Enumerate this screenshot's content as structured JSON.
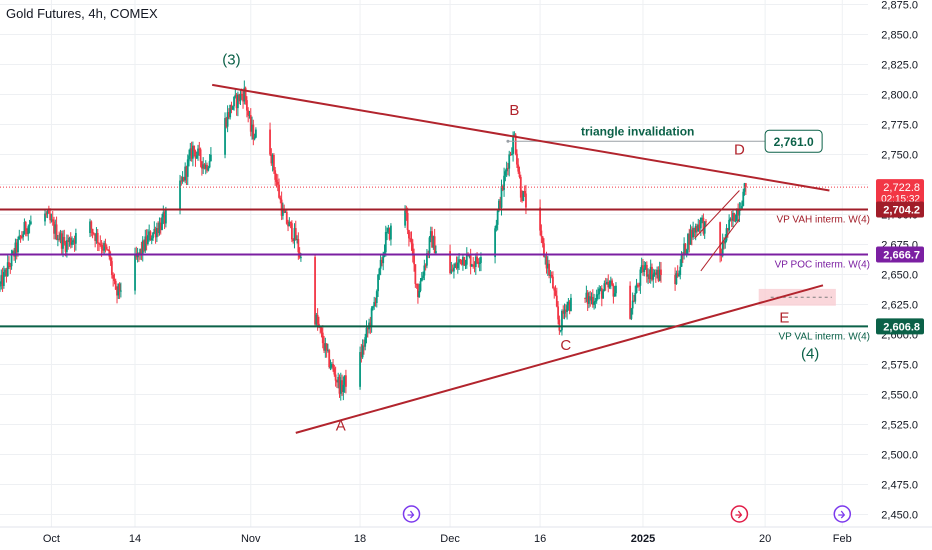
{
  "header": {
    "title": "Gold Futures, 4h, COMEX"
  },
  "colors": {
    "up": "#089981",
    "down": "#f23645",
    "trend": "#b2242d",
    "vah": "#a11d29",
    "poc": "#7b1fa2",
    "val": "#0b6148",
    "wave_green": "#0b6148",
    "wave_red": "#b2242d",
    "last": "#f23645",
    "axis_text": "#131722",
    "grid": "#eef0f3",
    "zone": "#f8c9cf"
  },
  "chart_data": {
    "type": "candlestick",
    "title": "Gold Futures, 4h, COMEX",
    "y_axis": {
      "min": 2430,
      "max": 2880,
      "ticks": [
        2450,
        2475,
        2500,
        2525,
        2550,
        2575,
        2600,
        2625,
        2650,
        2675,
        2700,
        2725,
        2750,
        2775,
        2800,
        2825,
        2850,
        2875
      ],
      "tick_labels": [
        "2,450.0",
        "2,475.0",
        "2,500.0",
        "2,525.0",
        "2,550.0",
        "2,575.0",
        "2,600.0",
        "2,625.0",
        "2,650.0",
        "2,675.0",
        "2,700.0",
        "2,725.0",
        "2,750.0",
        "2,775.0",
        "2,800.0",
        "2,825.0",
        "2,850.0",
        "2,875.0"
      ]
    },
    "x_axis": {
      "start": "2024-09-23",
      "end": "2025-02-05",
      "ticks": [
        {
          "date": "2024-10-01",
          "label": "Oct",
          "bold": false
        },
        {
          "date": "2024-10-14",
          "label": "14",
          "bold": false
        },
        {
          "date": "2024-11-01",
          "label": "Nov",
          "bold": false
        },
        {
          "date": "2024-11-18",
          "label": "18",
          "bold": false
        },
        {
          "date": "2024-12-02",
          "label": "Dec",
          "bold": false
        },
        {
          "date": "2024-12-16",
          "label": "16",
          "bold": false
        },
        {
          "date": "2025-01-01",
          "label": "2025",
          "bold": true
        },
        {
          "date": "2025-01-20",
          "label": "20",
          "bold": false
        },
        {
          "date": "2025-02-01",
          "label": "Feb",
          "bold": false
        }
      ]
    },
    "price_path": [
      [
        "2024-09-23",
        2640
      ],
      [
        "2024-09-27",
        2690
      ],
      [
        "2024-09-30",
        2700
      ],
      [
        "2024-10-03",
        2675
      ],
      [
        "2024-10-07",
        2690
      ],
      [
        "2024-10-10",
        2665
      ],
      [
        "2024-10-11",
        2632
      ],
      [
        "2024-10-14",
        2660
      ],
      [
        "2024-10-16",
        2680
      ],
      [
        "2024-10-20",
        2705
      ],
      [
        "2024-10-23",
        2755
      ],
      [
        "2024-10-25",
        2740
      ],
      [
        "2024-10-29",
        2790
      ],
      [
        "2024-10-31",
        2802
      ],
      [
        "2024-11-01",
        2770
      ],
      [
        "2024-11-04",
        2755
      ],
      [
        "2024-11-06",
        2700
      ],
      [
        "2024-11-08",
        2680
      ],
      [
        "2024-11-11",
        2615
      ],
      [
        "2024-11-13",
        2580
      ],
      [
        "2024-11-15",
        2555
      ],
      [
        "2024-11-18",
        2580
      ],
      [
        "2024-11-20",
        2620
      ],
      [
        "2024-11-22",
        2680
      ],
      [
        "2024-11-25",
        2705
      ],
      [
        "2024-11-27",
        2635
      ],
      [
        "2024-11-29",
        2680
      ],
      [
        "2024-12-02",
        2650
      ],
      [
        "2024-12-04",
        2665
      ],
      [
        "2024-12-06",
        2660
      ],
      [
        "2024-12-09",
        2690
      ],
      [
        "2024-12-11",
        2745
      ],
      [
        "2024-12-12",
        2765
      ],
      [
        "2024-12-13",
        2720
      ],
      [
        "2024-12-16",
        2680
      ],
      [
        "2024-12-18",
        2640
      ],
      [
        "2024-12-19",
        2605
      ],
      [
        "2024-12-20",
        2625
      ],
      [
        "2024-12-24",
        2630
      ],
      [
        "2024-12-27",
        2640
      ],
      [
        "2024-12-30",
        2620
      ],
      [
        "2025-01-01",
        2655
      ],
      [
        "2025-01-03",
        2650
      ],
      [
        "2025-01-06",
        2645
      ],
      [
        "2025-01-08",
        2680
      ],
      [
        "2025-01-10",
        2695
      ],
      [
        "2025-01-13",
        2665
      ],
      [
        "2025-01-14",
        2685
      ],
      [
        "2025-01-16",
        2708
      ],
      [
        "2025-01-17",
        2722.8
      ]
    ],
    "last_price": 2722.8,
    "last_price_label": "2,722.8",
    "countdown": "02:15:32",
    "horizontal_levels": [
      {
        "name": "VP VAH interm. W(4)",
        "value": 2704.2,
        "value_label": "2,704.2",
        "color": "#a11d29"
      },
      {
        "name": "VP POC interm. W(4)",
        "value": 2666.7,
        "value_label": "2,666.7",
        "color": "#7b1fa2"
      },
      {
        "name": "VP VAL interm. W(4)",
        "value": 2606.8,
        "value_label": "2,606.8",
        "color": "#0b6148"
      }
    ],
    "trendlines": [
      {
        "name": "upper",
        "from": [
          "2024-10-26",
          2808
        ],
        "to": [
          "2025-01-30",
          2720
        ]
      },
      {
        "name": "lower",
        "from": [
          "2024-11-08",
          2518
        ],
        "to": [
          "2025-01-29",
          2641
        ]
      }
    ],
    "annotations": {
      "waves": [
        {
          "label": "(3)",
          "date": "2024-10-29",
          "price": 2825,
          "color": "green"
        },
        {
          "label": "A",
          "date": "2024-11-15",
          "price": 2520,
          "color": "red"
        },
        {
          "label": "B",
          "date": "2024-12-12",
          "price": 2783,
          "color": "red"
        },
        {
          "label": "C",
          "date": "2024-12-20",
          "price": 2587,
          "color": "red"
        },
        {
          "label": "D",
          "date": "2025-01-16",
          "price": 2750,
          "color": "red"
        },
        {
          "label": "E",
          "date": "2025-01-23",
          "price": 2610,
          "color": "red"
        },
        {
          "label": "(4)",
          "date": "2025-01-27",
          "price": 2580,
          "color": "green"
        }
      ],
      "invalidation_text": "triangle invalidation",
      "invalidation_value": "2,761.0",
      "invalidation_level": 2761
    }
  }
}
